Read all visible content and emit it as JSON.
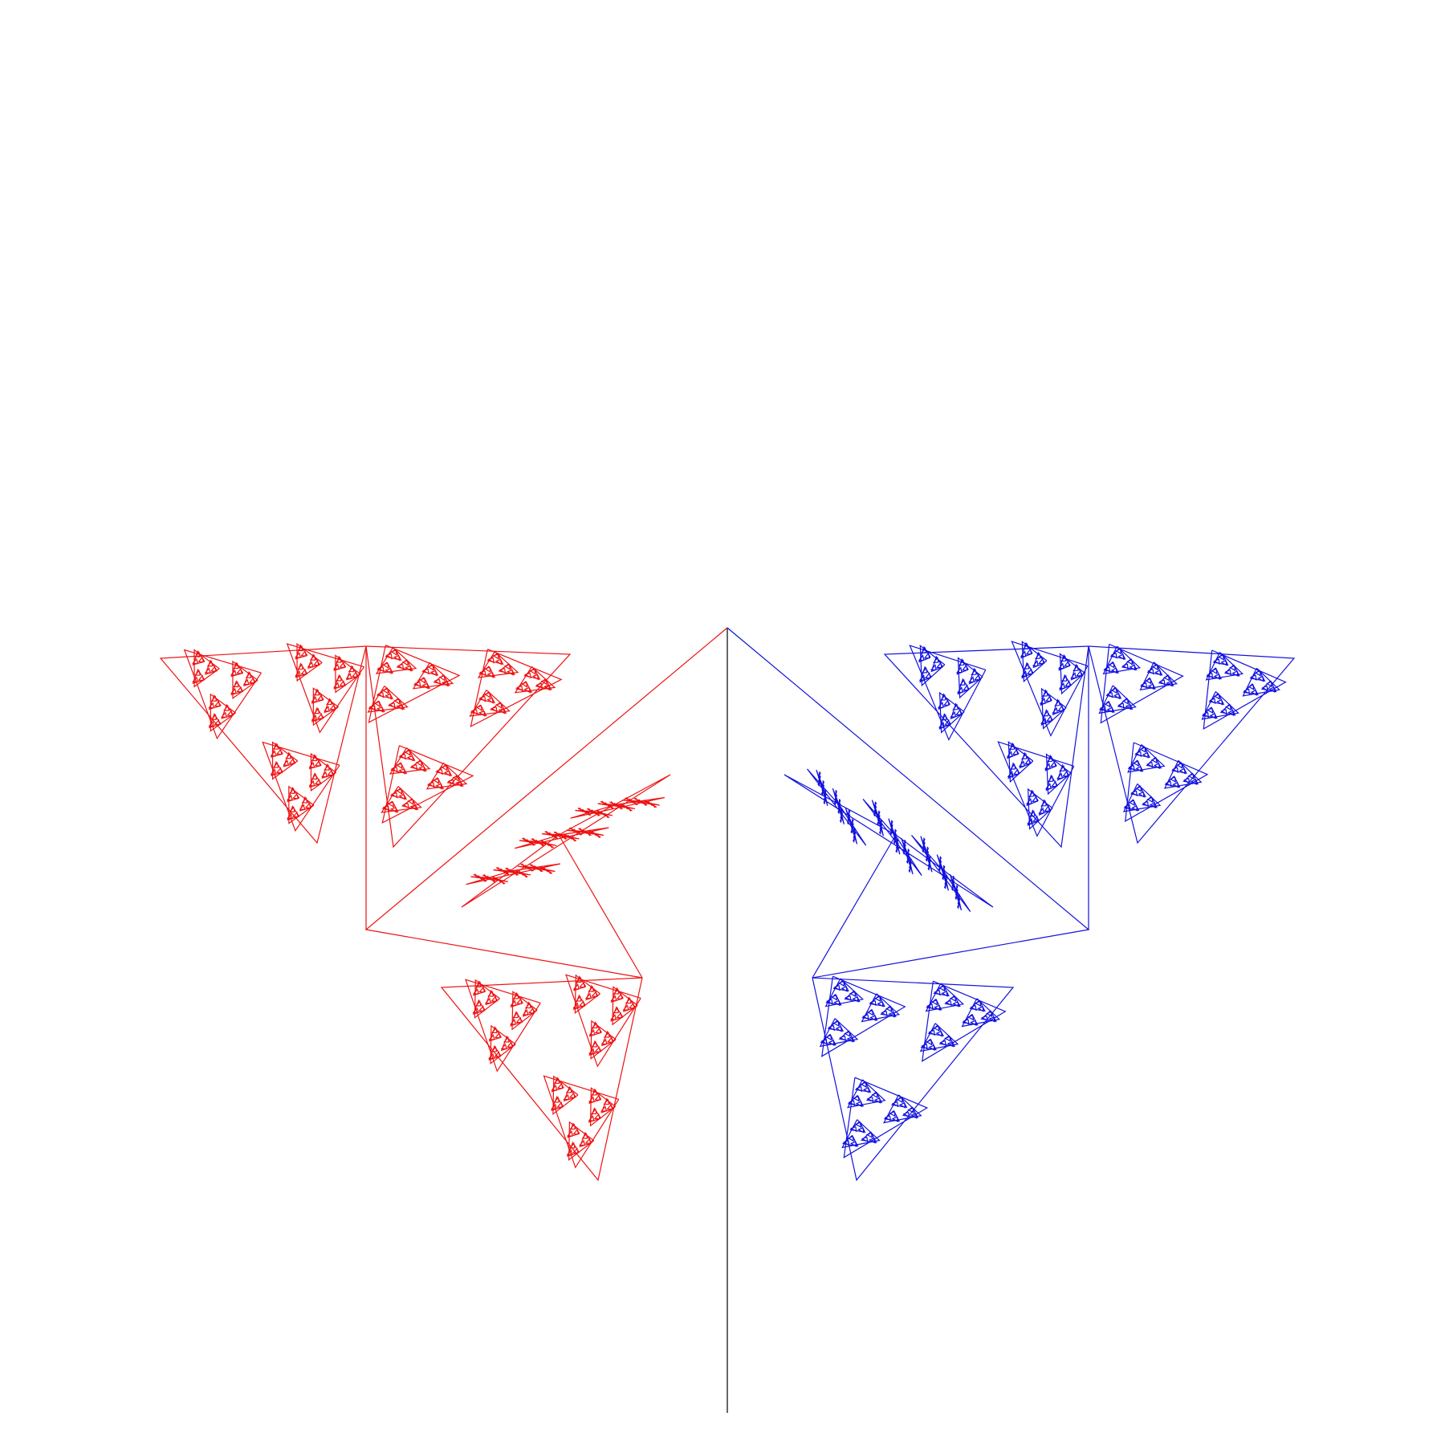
{
  "figure": {
    "kind": "fractal-tree",
    "description_free": true,
    "colors": {
      "background": "#ffffff",
      "trunk": "#000000",
      "left_branch": "#ee1111",
      "right_branch": "#1111dd"
    },
    "recursion_depth": 12,
    "branch_angle_deg": 140,
    "branch_ratio": 0.6,
    "mirror_symmetric": true
  }
}
